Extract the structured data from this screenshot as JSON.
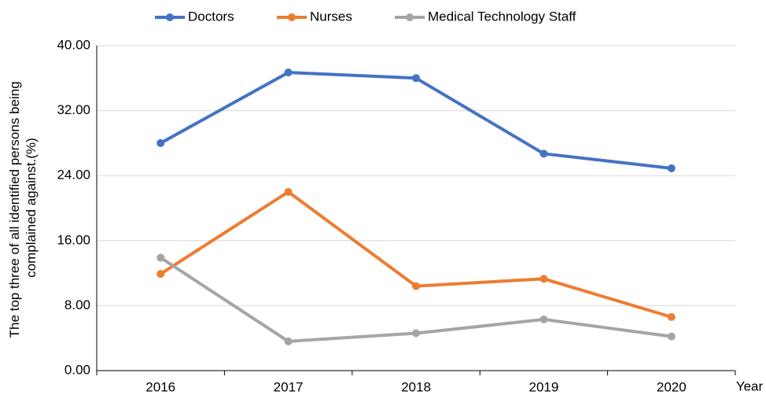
{
  "chart_data": {
    "type": "line",
    "ylabel": [
      "The top three of all identified persons being",
      "complained against.(%)"
    ],
    "xlabel": "Year",
    "categories": [
      "2016",
      "2017",
      "2018",
      "2019",
      "2020"
    ],
    "series": [
      {
        "name": "Doctors",
        "color": "#4472c4",
        "values": [
          28.0,
          36.7,
          36.0,
          26.7,
          24.9
        ]
      },
      {
        "name": "Nurses",
        "color": "#ed7d31",
        "values": [
          11.9,
          22.0,
          10.4,
          11.3,
          6.6
        ]
      },
      {
        "name": "Medical Technology Staff",
        "color": "#a5a5a5",
        "values": [
          13.9,
          3.6,
          4.6,
          6.3,
          4.2
        ]
      }
    ],
    "ylim": [
      0,
      40
    ],
    "yticks": [
      {
        "value": 0,
        "label": "0.00"
      },
      {
        "value": 8,
        "label": "8.00"
      },
      {
        "value": 16,
        "label": "16.00"
      },
      {
        "value": 24,
        "label": "24.00"
      },
      {
        "value": 32,
        "label": "32.00"
      },
      {
        "value": 40,
        "label": "40.00"
      }
    ],
    "grid": true,
    "legend": "top"
  }
}
